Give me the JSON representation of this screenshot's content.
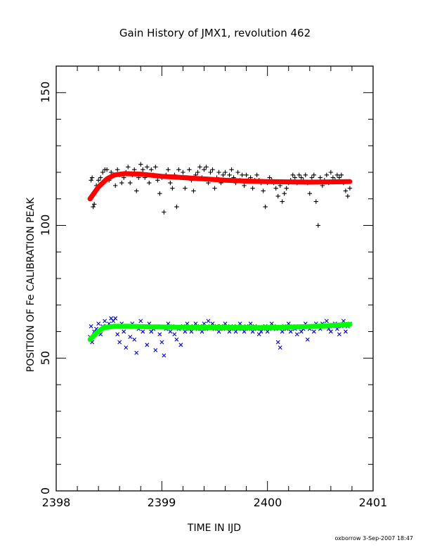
{
  "chart_data": {
    "type": "scatter",
    "title": "Gain History of JMX1, revolution 462",
    "xlabel": "TIME IN IJD",
    "ylabel": "POSITION OF Fe CALIBRATION PEAK",
    "xlim": [
      2398,
      2401
    ],
    "ylim": [
      0,
      160
    ],
    "x_ticks": [
      "2398",
      "2399",
      "2400",
      "2401"
    ],
    "y_ticks": [
      "0",
      "50",
      "100",
      "150"
    ],
    "grid": false,
    "series": [
      {
        "color": "#000000",
        "marker": "plus",
        "points": [
          [
            2398.32,
            110
          ],
          [
            2398.33,
            117
          ],
          [
            2398.34,
            118
          ],
          [
            2398.35,
            107
          ],
          [
            2398.36,
            108
          ],
          [
            2398.37,
            113
          ],
          [
            2398.38,
            115
          ],
          [
            2398.4,
            117
          ],
          [
            2398.42,
            118
          ],
          [
            2398.44,
            120
          ],
          [
            2398.46,
            121
          ],
          [
            2398.48,
            121
          ],
          [
            2398.5,
            117
          ],
          [
            2398.52,
            120
          ],
          [
            2398.54,
            119
          ],
          [
            2398.56,
            115
          ],
          [
            2398.58,
            121
          ],
          [
            2398.6,
            119
          ],
          [
            2398.62,
            116
          ],
          [
            2398.64,
            118
          ],
          [
            2398.66,
            120
          ],
          [
            2398.68,
            122
          ],
          [
            2398.7,
            116
          ],
          [
            2398.72,
            119
          ],
          [
            2398.74,
            121
          ],
          [
            2398.76,
            113
          ],
          [
            2398.78,
            118
          ],
          [
            2398.8,
            123
          ],
          [
            2398.82,
            121
          ],
          [
            2398.84,
            118
          ],
          [
            2398.86,
            122
          ],
          [
            2398.88,
            116
          ],
          [
            2398.9,
            121
          ],
          [
            2398.92,
            119
          ],
          [
            2398.94,
            122
          ],
          [
            2398.96,
            117
          ],
          [
            2398.98,
            112
          ],
          [
            2399.0,
            118
          ],
          [
            2399.02,
            105
          ],
          [
            2399.04,
            119
          ],
          [
            2399.06,
            121
          ],
          [
            2399.08,
            116
          ],
          [
            2399.1,
            114
          ],
          [
            2399.12,
            119
          ],
          [
            2399.14,
            107
          ],
          [
            2399.16,
            121
          ],
          [
            2399.18,
            118
          ],
          [
            2399.2,
            120
          ],
          [
            2399.22,
            114
          ],
          [
            2399.24,
            118
          ],
          [
            2399.26,
            121
          ],
          [
            2399.28,
            117
          ],
          [
            2399.3,
            113
          ],
          [
            2399.32,
            119
          ],
          [
            2399.34,
            120
          ],
          [
            2399.36,
            122
          ],
          [
            2399.38,
            118
          ],
          [
            2399.4,
            121
          ],
          [
            2399.42,
            122
          ],
          [
            2399.44,
            116
          ],
          [
            2399.46,
            120
          ],
          [
            2399.48,
            121
          ],
          [
            2399.5,
            114
          ],
          [
            2399.52,
            118
          ],
          [
            2399.54,
            120
          ],
          [
            2399.56,
            116
          ],
          [
            2399.58,
            119
          ],
          [
            2399.6,
            120
          ],
          [
            2399.62,
            117
          ],
          [
            2399.64,
            119
          ],
          [
            2399.66,
            121
          ],
          [
            2399.68,
            118
          ],
          [
            2399.7,
            116
          ],
          [
            2399.72,
            120
          ],
          [
            2399.74,
            117
          ],
          [
            2399.76,
            119
          ],
          [
            2399.78,
            115
          ],
          [
            2399.8,
            119
          ],
          [
            2399.82,
            117
          ],
          [
            2399.84,
            118
          ],
          [
            2399.86,
            114
          ],
          [
            2399.88,
            117
          ],
          [
            2399.9,
            119
          ],
          [
            2399.92,
            117
          ],
          [
            2399.94,
            116
          ],
          [
            2399.96,
            113
          ],
          [
            2399.98,
            107
          ],
          [
            2400.0,
            116
          ],
          [
            2400.02,
            118
          ],
          [
            2400.04,
            117
          ],
          [
            2400.06,
            116
          ],
          [
            2400.08,
            114
          ],
          [
            2400.1,
            111
          ],
          [
            2400.12,
            115
          ],
          [
            2400.14,
            109
          ],
          [
            2400.16,
            112
          ],
          [
            2400.18,
            114
          ],
          [
            2400.2,
            116
          ],
          [
            2400.22,
            117
          ],
          [
            2400.24,
            119
          ],
          [
            2400.26,
            118
          ],
          [
            2400.28,
            116
          ],
          [
            2400.3,
            119
          ],
          [
            2400.32,
            118
          ],
          [
            2400.34,
            117
          ],
          [
            2400.36,
            119
          ],
          [
            2400.38,
            116
          ],
          [
            2400.4,
            112
          ],
          [
            2400.42,
            118
          ],
          [
            2400.44,
            119
          ],
          [
            2400.46,
            109
          ],
          [
            2400.48,
            100
          ],
          [
            2400.5,
            118
          ],
          [
            2400.52,
            115
          ],
          [
            2400.54,
            117
          ],
          [
            2400.56,
            119
          ],
          [
            2400.58,
            116
          ],
          [
            2400.6,
            120
          ],
          [
            2400.62,
            118
          ],
          [
            2400.64,
            117
          ],
          [
            2400.66,
            119
          ],
          [
            2400.68,
            118
          ],
          [
            2400.7,
            119
          ],
          [
            2400.72,
            116
          ],
          [
            2400.74,
            113
          ],
          [
            2400.76,
            111
          ],
          [
            2400.78,
            114
          ]
        ]
      },
      {
        "color": "#ff0000",
        "marker": "line",
        "points": [
          [
            2398.32,
            110
          ],
          [
            2398.4,
            114.5
          ],
          [
            2398.48,
            117.5
          ],
          [
            2398.55,
            119
          ],
          [
            2398.65,
            119.5
          ],
          [
            2398.8,
            119.3
          ],
          [
            2399.0,
            118.5
          ],
          [
            2399.2,
            118
          ],
          [
            2399.4,
            117.5
          ],
          [
            2399.6,
            117
          ],
          [
            2399.8,
            116.7
          ],
          [
            2400.0,
            116.5
          ],
          [
            2400.2,
            116.4
          ],
          [
            2400.4,
            116.3
          ],
          [
            2400.6,
            116.4
          ],
          [
            2400.78,
            116.5
          ]
        ]
      },
      {
        "color": "#0000cc",
        "marker": "cross",
        "points": [
          [
            2398.32,
            58
          ],
          [
            2398.33,
            62
          ],
          [
            2398.34,
            56
          ],
          [
            2398.36,
            60
          ],
          [
            2398.38,
            61
          ],
          [
            2398.4,
            63
          ],
          [
            2398.42,
            59
          ],
          [
            2398.44,
            62
          ],
          [
            2398.46,
            64
          ],
          [
            2398.48,
            62
          ],
          [
            2398.5,
            63
          ],
          [
            2398.52,
            65
          ],
          [
            2398.54,
            64
          ],
          [
            2398.56,
            65
          ],
          [
            2398.58,
            59
          ],
          [
            2398.6,
            56
          ],
          [
            2398.62,
            63
          ],
          [
            2398.64,
            60
          ],
          [
            2398.66,
            54
          ],
          [
            2398.68,
            62
          ],
          [
            2398.7,
            58
          ],
          [
            2398.72,
            63
          ],
          [
            2398.74,
            57
          ],
          [
            2398.76,
            52
          ],
          [
            2398.78,
            61
          ],
          [
            2398.8,
            64
          ],
          [
            2398.82,
            60
          ],
          [
            2398.84,
            62
          ],
          [
            2398.86,
            55
          ],
          [
            2398.88,
            63
          ],
          [
            2398.9,
            60
          ],
          [
            2398.92,
            61
          ],
          [
            2398.94,
            53
          ],
          [
            2398.96,
            62
          ],
          [
            2398.98,
            59
          ],
          [
            2399.0,
            56
          ],
          [
            2399.02,
            51
          ],
          [
            2399.04,
            61
          ],
          [
            2399.06,
            63
          ],
          [
            2399.08,
            60
          ],
          [
            2399.1,
            62
          ],
          [
            2399.12,
            59
          ],
          [
            2399.14,
            57
          ],
          [
            2399.16,
            61
          ],
          [
            2399.18,
            55
          ],
          [
            2399.2,
            62
          ],
          [
            2399.22,
            60
          ],
          [
            2399.24,
            63
          ],
          [
            2399.26,
            61
          ],
          [
            2399.28,
            60
          ],
          [
            2399.3,
            62
          ],
          [
            2399.32,
            63
          ],
          [
            2399.34,
            61
          ],
          [
            2399.36,
            62
          ],
          [
            2399.38,
            60
          ],
          [
            2399.4,
            63
          ],
          [
            2399.42,
            61
          ],
          [
            2399.44,
            64
          ],
          [
            2399.46,
            62
          ],
          [
            2399.48,
            63
          ],
          [
            2399.5,
            61
          ],
          [
            2399.52,
            62
          ],
          [
            2399.54,
            60
          ],
          [
            2399.56,
            62
          ],
          [
            2399.58,
            61
          ],
          [
            2399.6,
            63
          ],
          [
            2399.62,
            62
          ],
          [
            2399.64,
            60
          ],
          [
            2399.66,
            61
          ],
          [
            2399.68,
            62
          ],
          [
            2399.7,
            60
          ],
          [
            2399.72,
            61
          ],
          [
            2399.74,
            63
          ],
          [
            2399.76,
            61
          ],
          [
            2399.78,
            60
          ],
          [
            2399.8,
            62
          ],
          [
            2399.82,
            61
          ],
          [
            2399.84,
            63
          ],
          [
            2399.86,
            60
          ],
          [
            2399.88,
            62
          ],
          [
            2399.9,
            61
          ],
          [
            2399.92,
            59
          ],
          [
            2399.94,
            60
          ],
          [
            2399.96,
            61
          ],
          [
            2399.98,
            62
          ],
          [
            2400.0,
            60
          ],
          [
            2400.02,
            61
          ],
          [
            2400.04,
            63
          ],
          [
            2400.06,
            62
          ],
          [
            2400.08,
            61
          ],
          [
            2400.1,
            56
          ],
          [
            2400.12,
            54
          ],
          [
            2400.14,
            60
          ],
          [
            2400.16,
            62
          ],
          [
            2400.18,
            61
          ],
          [
            2400.2,
            63
          ],
          [
            2400.22,
            60
          ],
          [
            2400.24,
            62
          ],
          [
            2400.26,
            61
          ],
          [
            2400.28,
            59
          ],
          [
            2400.3,
            62
          ],
          [
            2400.32,
            60
          ],
          [
            2400.34,
            61
          ],
          [
            2400.36,
            63
          ],
          [
            2400.38,
            57
          ],
          [
            2400.4,
            61
          ],
          [
            2400.42,
            62
          ],
          [
            2400.44,
            60
          ],
          [
            2400.46,
            63
          ],
          [
            2400.48,
            62
          ],
          [
            2400.5,
            61
          ],
          [
            2400.52,
            63
          ],
          [
            2400.54,
            62
          ],
          [
            2400.56,
            64
          ],
          [
            2400.58,
            61
          ],
          [
            2400.6,
            60
          ],
          [
            2400.62,
            62
          ],
          [
            2400.64,
            63
          ],
          [
            2400.66,
            61
          ],
          [
            2400.68,
            59
          ],
          [
            2400.7,
            62
          ],
          [
            2400.72,
            64
          ],
          [
            2400.74,
            60
          ],
          [
            2400.76,
            62
          ],
          [
            2400.78,
            63
          ]
        ]
      },
      {
        "color": "#00ff00",
        "marker": "line",
        "points": [
          [
            2398.32,
            57
          ],
          [
            2398.38,
            59.5
          ],
          [
            2398.45,
            61.5
          ],
          [
            2398.55,
            62
          ],
          [
            2398.7,
            62
          ],
          [
            2398.9,
            61.8
          ],
          [
            2399.1,
            61.7
          ],
          [
            2399.3,
            61.6
          ],
          [
            2399.5,
            61.6
          ],
          [
            2399.7,
            61.6
          ],
          [
            2399.9,
            61.5
          ],
          [
            2400.1,
            61.6
          ],
          [
            2400.3,
            61.8
          ],
          [
            2400.5,
            62.1
          ],
          [
            2400.65,
            62.4
          ],
          [
            2400.78,
            62.7
          ]
        ]
      }
    ]
  },
  "footer": "oxborrow  3-Sep-2007 18:47"
}
